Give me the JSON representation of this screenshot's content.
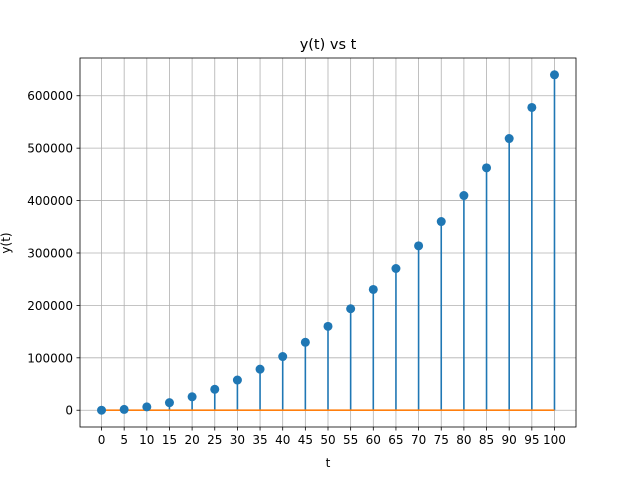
{
  "chart_data": {
    "type": "stem",
    "title": "y(t) vs t",
    "xlabel": "t",
    "ylabel": "y(t)",
    "grid": true,
    "xlim": [
      -4.75,
      104.75
    ],
    "ylim": [
      -32000,
      672000
    ],
    "xticks": [
      0,
      5,
      10,
      15,
      20,
      25,
      30,
      35,
      40,
      45,
      50,
      55,
      60,
      65,
      70,
      75,
      80,
      85,
      90,
      95,
      100
    ],
    "yticks": [
      0,
      100000,
      200000,
      300000,
      400000,
      500000,
      600000
    ],
    "x": [
      0,
      5,
      10,
      15,
      20,
      25,
      30,
      35,
      40,
      45,
      50,
      55,
      60,
      65,
      70,
      75,
      80,
      85,
      90,
      95,
      100
    ],
    "y": [
      0,
      1600,
      6400,
      14400,
      25600,
      40000,
      57600,
      78400,
      102400,
      129600,
      160000,
      193600,
      230400,
      270400,
      313600,
      360000,
      409600,
      462400,
      518400,
      577600,
      640000
    ],
    "colors": {
      "markers": "#1f77b4",
      "stems": "#1f77b4",
      "baseline": "#ff7f0e",
      "grid": "#b0b0b0"
    }
  }
}
